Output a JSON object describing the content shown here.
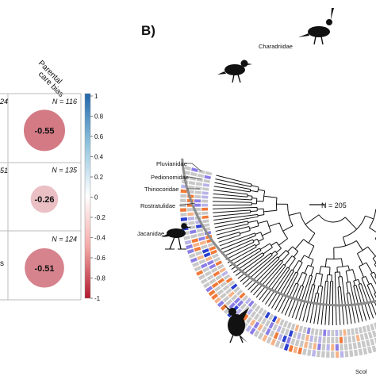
{
  "panel_b_label": "B)",
  "column_header_line1": "Parental",
  "column_header_line2": "care bias",
  "left_edge_labels": [
    "24",
    "51",
    "s"
  ],
  "chart_data": [
    {
      "type": "heatmap",
      "title": "",
      "cells": [
        {
          "n_label": "N = 116",
          "value": -0.55,
          "value_label": "-0.55"
        },
        {
          "n_label": "N = 135",
          "value": -0.26,
          "value_label": "-0.26"
        },
        {
          "n_label": "N = 124",
          "value": -0.51,
          "value_label": "-0.51"
        }
      ],
      "colorbar": {
        "ticks": [
          1,
          0.8,
          0.6,
          0.4,
          0.2,
          0,
          -0.2,
          -0.4,
          -0.6,
          -0.8,
          -1
        ],
        "tick_labels": [
          "1",
          "0.8",
          "0.6",
          "0.4",
          "0.2",
          "0",
          "-0.2",
          "-0.4",
          "-0.6",
          "-0.8",
          "-1"
        ],
        "range": [
          -1,
          1
        ],
        "color_positive": "#2166ac",
        "color_zero": "#ffffff",
        "color_negative": "#b2182b"
      }
    },
    {
      "type": "heatmap",
      "subtype": "circular phylogeny",
      "n_label": "N = 205",
      "families": [
        "Charadriidae",
        "Pluvianidae",
        "Pedionomidae",
        "Thinocoridae",
        "Rostratulidae",
        "Jacanidae",
        "Scol"
      ],
      "colors": {
        "grey": "#c8c8c8",
        "light_purple": "#b9b4e8",
        "purple": "#8a7ee6",
        "blue": "#2a3fd1",
        "orange": "#f07a3a",
        "light_orange": "#f6b48a"
      }
    }
  ]
}
